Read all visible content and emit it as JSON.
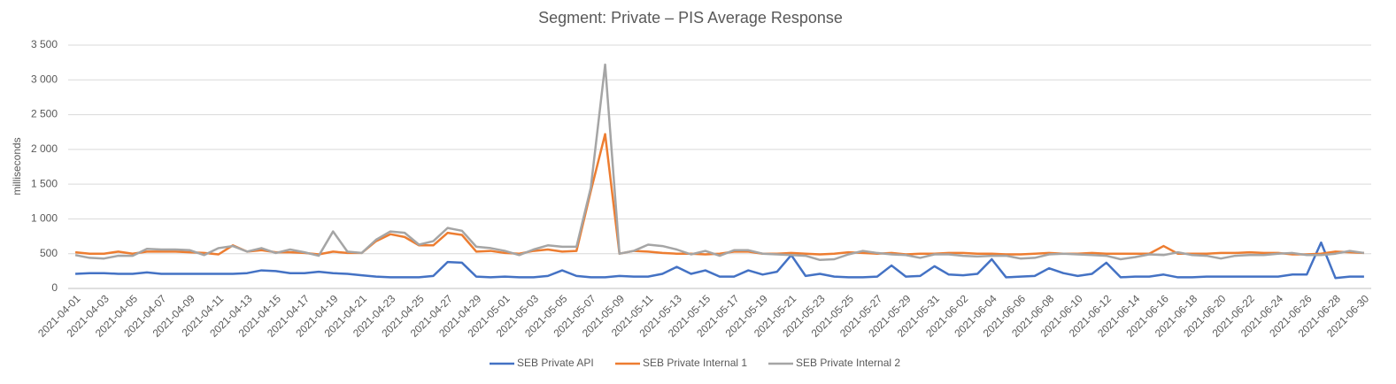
{
  "chart_data": {
    "type": "line",
    "title": "Segment: Private – PIS Average Response",
    "y_label": "milliseconds",
    "categories": [
      "2021-04-01",
      null,
      "2021-04-03",
      null,
      "2021-04-05",
      null,
      "2021-04-07",
      null,
      "2021-04-09",
      null,
      "2021-04-11",
      null,
      "2021-04-13",
      null,
      "2021-04-15",
      null,
      "2021-04-17",
      null,
      "2021-04-19",
      null,
      "2021-04-21",
      null,
      "2021-04-23",
      null,
      "2021-04-25",
      null,
      "2021-04-27",
      null,
      "2021-04-29",
      null,
      "2021-05-01",
      null,
      "2021-05-03",
      null,
      "2021-05-05",
      null,
      "2021-05-07",
      null,
      "2021-05-09",
      null,
      "2021-05-11",
      null,
      "2021-05-13",
      null,
      "2021-05-15",
      null,
      "2021-05-17",
      null,
      "2021-05-19",
      null,
      "2021-05-21",
      null,
      "2021-05-23",
      null,
      "2021-05-25",
      null,
      "2021-05-27",
      null,
      "2021-05-29",
      null,
      "2021-05-31",
      null,
      "2021-06-02",
      null,
      "2021-06-04",
      null,
      "2021-06-06",
      null,
      "2021-06-08",
      null,
      "2021-06-10",
      null,
      "2021-06-12",
      null,
      "2021-06-14",
      null,
      "2021-06-16",
      null,
      "2021-06-18",
      null,
      "2021-06-20",
      null,
      "2021-06-22",
      null,
      "2021-06-24",
      null,
      "2021-06-26",
      null,
      "2021-06-28",
      null,
      "2021-06-30"
    ],
    "series": [
      {
        "name": "SEB Private API",
        "color": "#4472c4",
        "values": [
          210,
          220,
          220,
          210,
          210,
          230,
          210,
          210,
          210,
          210,
          210,
          210,
          220,
          260,
          250,
          220,
          220,
          240,
          220,
          210,
          190,
          170,
          160,
          160,
          160,
          180,
          380,
          370,
          170,
          160,
          170,
          160,
          160,
          180,
          260,
          180,
          160,
          160,
          180,
          170,
          170,
          210,
          310,
          210,
          260,
          170,
          170,
          260,
          200,
          240,
          480,
          180,
          210,
          170,
          160,
          160,
          170,
          330,
          170,
          180,
          320,
          200,
          190,
          210,
          420,
          160,
          170,
          180,
          290,
          220,
          180,
          210,
          370,
          160,
          170,
          170,
          200,
          160,
          160,
          170,
          170,
          170,
          170,
          170,
          170,
          200,
          200,
          660,
          150,
          170,
          170
        ]
      },
      {
        "name": "SEB Private Internal 1",
        "color": "#ed7d31",
        "values": [
          520,
          500,
          500,
          530,
          500,
          530,
          530,
          530,
          520,
          510,
          490,
          620,
          530,
          550,
          520,
          520,
          510,
          490,
          530,
          510,
          510,
          680,
          780,
          740,
          620,
          620,
          800,
          770,
          530,
          540,
          510,
          500,
          540,
          560,
          530,
          540,
          1400,
          2220,
          500,
          540,
          530,
          510,
          500,
          500,
          490,
          500,
          530,
          530,
          500,
          500,
          510,
          500,
          490,
          500,
          520,
          510,
          500,
          510,
          490,
          500,
          500,
          510,
          510,
          500,
          500,
          490,
          490,
          500,
          510,
          500,
          500,
          510,
          500,
          500,
          500,
          500,
          610,
          500,
          500,
          500,
          510,
          510,
          520,
          510,
          510,
          490,
          490,
          500,
          530,
          520,
          510
        ]
      },
      {
        "name": "SEB Private Internal 2",
        "color": "#a5a5a5",
        "values": [
          480,
          440,
          430,
          470,
          470,
          570,
          560,
          560,
          550,
          480,
          580,
          610,
          530,
          580,
          510,
          560,
          520,
          470,
          820,
          530,
          510,
          700,
          820,
          800,
          630,
          680,
          870,
          830,
          600,
          580,
          540,
          480,
          560,
          620,
          600,
          600,
          1450,
          3220,
          500,
          540,
          630,
          610,
          560,
          490,
          540,
          470,
          550,
          550,
          500,
          490,
          480,
          470,
          410,
          420,
          490,
          540,
          510,
          490,
          480,
          440,
          490,
          490,
          470,
          460,
          470,
          470,
          430,
          440,
          490,
          500,
          490,
          480,
          470,
          420,
          450,
          490,
          480,
          520,
          480,
          470,
          430,
          470,
          480,
          480,
          500,
          510,
          480,
          480,
          500,
          540,
          510
        ]
      }
    ],
    "ylim": [
      0,
      3500
    ],
    "yticks": [
      0,
      500,
      {
        "value": 1000,
        "label": "1 000"
      },
      {
        "value": 1500,
        "label": "1 500"
      },
      {
        "value": 2000,
        "label": "2 000"
      },
      {
        "value": 2500,
        "label": "2 500"
      },
      {
        "value": 3000,
        "label": "3 000"
      },
      {
        "value": 3500,
        "label": "3 500"
      }
    ],
    "grid": true,
    "legend": "bottom"
  }
}
